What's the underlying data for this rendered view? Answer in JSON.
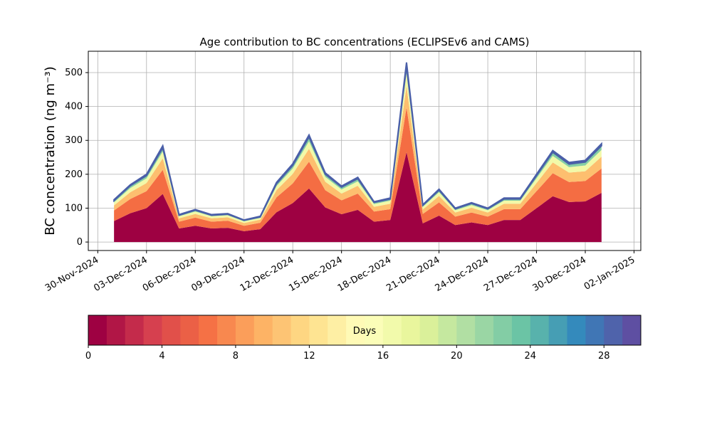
{
  "chart_data": {
    "type": "stacked_area",
    "title": "Age contribution to BC concentrations (ECLIPSEv6 and CAMS)",
    "y_label": "BC concentration (ng m⁻³)",
    "x": [
      "2024-12-01",
      "2024-12-02",
      "2024-12-03",
      "2024-12-04",
      "2024-12-05",
      "2024-12-06",
      "2024-12-07",
      "2024-12-08",
      "2024-12-09",
      "2024-12-10",
      "2024-12-11",
      "2024-12-12",
      "2024-12-13",
      "2024-12-14",
      "2024-12-15",
      "2024-12-16",
      "2024-12-17",
      "2024-12-18",
      "2024-12-19",
      "2024-12-20",
      "2024-12-21",
      "2024-12-22",
      "2024-12-23",
      "2024-12-24",
      "2024-12-25",
      "2024-12-26",
      "2024-12-27",
      "2024-12-28",
      "2024-12-29",
      "2024-12-30",
      "2024-12-31"
    ],
    "series": [
      {
        "color": "#9e0142",
        "values": [
          62,
          85,
          100,
          142,
          40,
          48,
          40,
          42,
          32,
          38,
          88,
          115,
          158,
          102,
          82,
          95,
          60,
          65,
          265,
          55,
          78,
          50,
          58,
          50,
          65,
          65,
          100,
          135,
          118,
          120,
          145
        ]
      },
      {
        "color": "#f46d43",
        "values": [
          31,
          42,
          50,
          71,
          20,
          24,
          20,
          21,
          16,
          19,
          44,
          58,
          79,
          51,
          41,
          48,
          30,
          32,
          132,
          28,
          39,
          25,
          29,
          25,
          32,
          32,
          50,
          68,
          59,
          60,
          72
        ]
      },
      {
        "color": "#fdbf6f",
        "values": [
          15,
          20,
          24,
          34,
          10,
          11,
          10,
          10,
          8,
          9,
          21,
          28,
          38,
          25,
          20,
          23,
          14,
          16,
          64,
          13,
          19,
          12,
          14,
          12,
          16,
          16,
          24,
          32,
          28,
          29,
          35
        ]
      },
      {
        "color": "#f2f9a8",
        "values": [
          9,
          12,
          14,
          20,
          6,
          7,
          6,
          6,
          5,
          5,
          12,
          16,
          22,
          14,
          12,
          13,
          8,
          9,
          37,
          8,
          11,
          7,
          8,
          7,
          9,
          9,
          14,
          19,
          16,
          17,
          20
        ]
      },
      {
        "color": "#85cfa4",
        "values": [
          5,
          7,
          8,
          11,
          3,
          4,
          3,
          3,
          3,
          3,
          7,
          9,
          13,
          8,
          7,
          8,
          5,
          5,
          21,
          4,
          6,
          4,
          5,
          4,
          5,
          5,
          8,
          11,
          9,
          10,
          12
        ]
      },
      {
        "color": "#4a5fa8",
        "values": [
          3,
          3,
          4,
          6,
          2,
          2,
          2,
          2,
          1,
          2,
          4,
          5,
          6,
          4,
          3,
          4,
          2,
          3,
          11,
          2,
          3,
          2,
          2,
          2,
          3,
          3,
          4,
          5,
          5,
          5,
          6
        ]
      }
    ],
    "xlim": [
      "2024-11-29T10:00",
      "2025-01-02T10:00"
    ],
    "xticks": [
      {
        "value": "2024-11-30",
        "label": "30-Nov-2024"
      },
      {
        "value": "2024-12-03",
        "label": "03-Dec-2024"
      },
      {
        "value": "2024-12-06",
        "label": "06-Dec-2024"
      },
      {
        "value": "2024-12-09",
        "label": "09-Dec-2024"
      },
      {
        "value": "2024-12-12",
        "label": "12-Dec-2024"
      },
      {
        "value": "2024-12-15",
        "label": "15-Dec-2024"
      },
      {
        "value": "2024-12-18",
        "label": "18-Dec-2024"
      },
      {
        "value": "2024-12-21",
        "label": "21-Dec-2024"
      },
      {
        "value": "2024-12-24",
        "label": "24-Dec-2024"
      },
      {
        "value": "2024-12-27",
        "label": "27-Dec-2024"
      },
      {
        "value": "2024-12-30",
        "label": "30-Dec-2024"
      },
      {
        "value": "2025-01-02",
        "label": "02-Jan-2025"
      }
    ],
    "ylim": [
      -25,
      563
    ],
    "yticks": [
      0,
      100,
      200,
      300,
      400,
      500
    ],
    "grid": true,
    "colorbar": {
      "label": "Days",
      "lim": [
        0,
        30
      ],
      "levels": 30,
      "ticks": [
        0,
        4,
        8,
        12,
        16,
        20,
        24,
        28
      ],
      "cmap": [
        "#9e0142",
        "#d53e4f",
        "#f46d43",
        "#fdae61",
        "#fee08b",
        "#ffffbf",
        "#e6f598",
        "#abdda4",
        "#66c2a5",
        "#3288bd",
        "#5e4fa2"
      ]
    }
  }
}
